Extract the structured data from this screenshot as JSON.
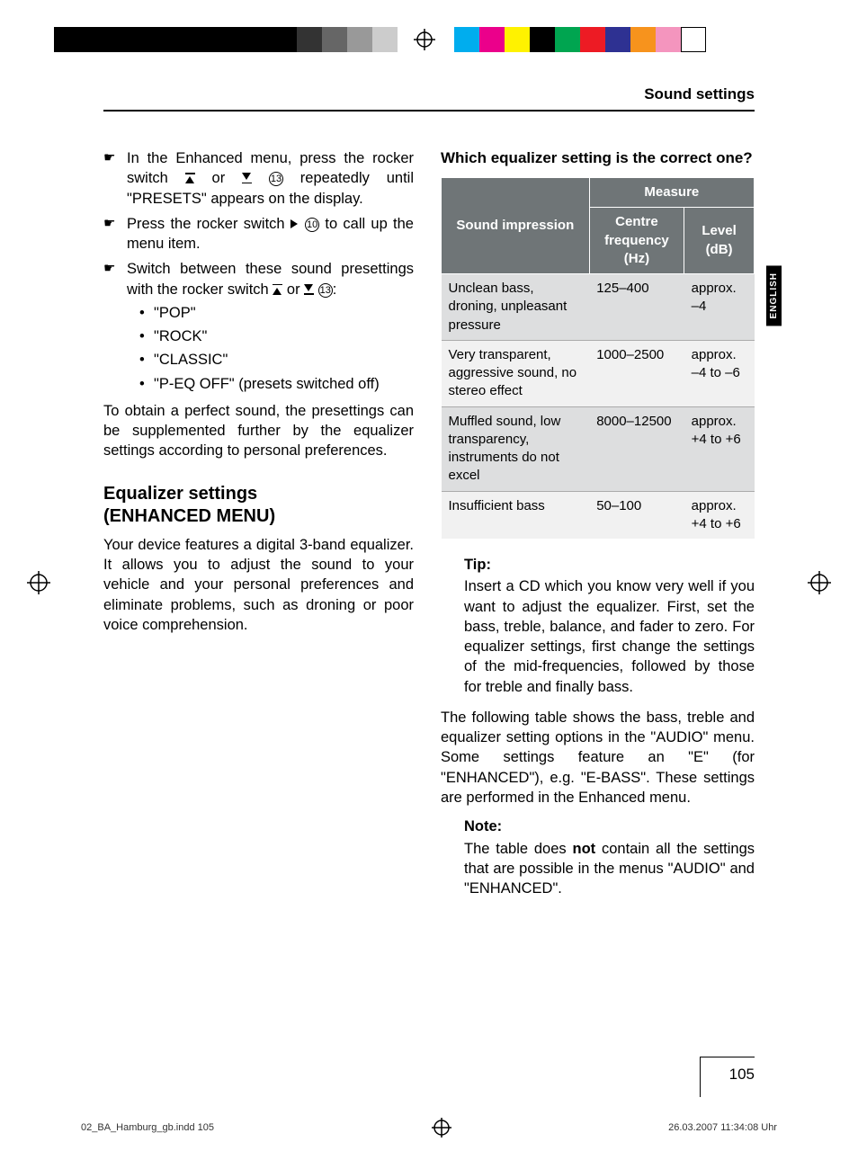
{
  "header": {
    "title": "Sound settings"
  },
  "lang_tab": "ENGLISH",
  "left": {
    "steps": [
      {
        "text_parts": [
          "In the Enhanced menu, press the rocker switch ",
          " or ",
          " ",
          " repeatedly until \"PRESETS\" appears on the display."
        ],
        "ref": "13"
      },
      {
        "text_parts": [
          "Press the rocker switch ",
          " ",
          " to call up the menu item."
        ],
        "ref": "10"
      },
      {
        "text_parts": [
          "Switch between these sound presettings with the rocker switch ",
          " or ",
          " ",
          ":"
        ],
        "ref": "13"
      }
    ],
    "presets": [
      "\"POP\"",
      "\"ROCK\"",
      "\"CLASSIC\"",
      "\"P-EQ OFF\" (presets switched off)"
    ],
    "after_presets": "To obtain a perfect sound, the presettings can be supplemented further by the equalizer settings according to personal preferences.",
    "section_title_1": "Equalizer settings",
    "section_title_2": "(ENHANCED MENU)",
    "eq_intro": "Your device features a digital 3-band equalizer. It allows you to adjust the sound to your vehicle and your personal preferences and eliminate problems, such as droning or poor voice comprehension."
  },
  "right": {
    "question": "Which equalizer setting is the correct one?",
    "table": {
      "col1": "Sound impression",
      "measure": "Measure",
      "col2": "Centre frequency (Hz)",
      "col3": "Level (dB)",
      "rows": [
        {
          "impression": "Unclean bass, droning, unpleasant pressure",
          "freq": "125–400",
          "level": "approx. –4"
        },
        {
          "impression": "Very transparent, aggressive sound, no stereo effect",
          "freq": "1000–2500",
          "level": "approx. –4 to –6"
        },
        {
          "impression": "Muffled sound, low transparency, instruments do not excel",
          "freq": "8000–12500",
          "level": "approx. +4 to +6"
        },
        {
          "impression": "Insufficient bass",
          "freq": "50–100",
          "level": "approx. +4 to +6"
        }
      ]
    },
    "tip_label": "Tip:",
    "tip_body": "Insert a CD which you know very well if you want to adjust the equalizer. First, set the bass, treble, balance, and fader to zero. For equalizer settings, first change the settings of the mid-frequencies, followed by those for treble and finally bass.",
    "after_tip": "The following table shows the bass, treble and equalizer setting options in the \"AUDIO\" menu. Some settings feature an \"E\" (for \"ENHANCED\"), e.g. \"E-BASS\". These settings are performed in the Enhanced menu.",
    "note_label": "Note:",
    "note_pre": "The table does ",
    "note_bold": "not",
    "note_post": " contain all the settings that are possible in the menus \"AUDIO\" and \"ENHANCED\"."
  },
  "page_number": "105",
  "footer": {
    "left": "02_BA_Hamburg_gb.indd   105",
    "right": "26.03.2007   11:34:08 Uhr"
  },
  "print_colors": [
    "#00adee",
    "#eb008b",
    "#fff200",
    "#000000",
    "#00a550",
    "#ed1b24",
    "#2e3192",
    "#f7931d",
    "#f495be",
    "#ffffff"
  ],
  "print_grays": [
    "#333333",
    "#666666",
    "#999999",
    "#cccccc"
  ]
}
